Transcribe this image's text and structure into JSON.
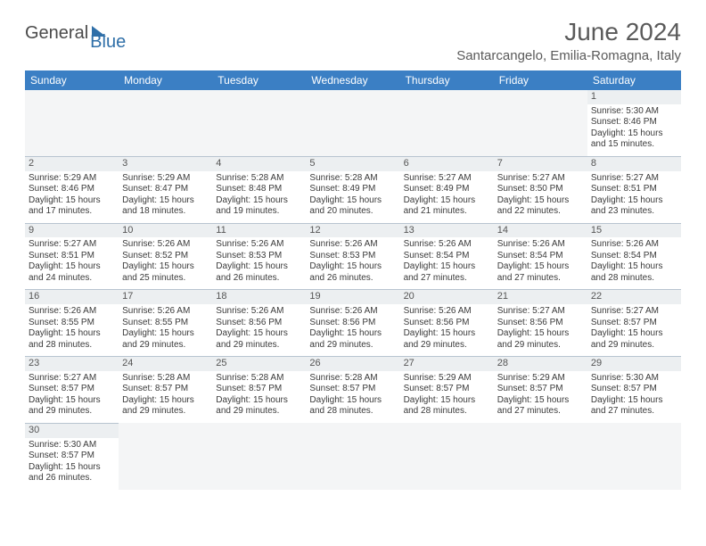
{
  "logo": {
    "part1": "General",
    "part2": "Blue"
  },
  "title": "June 2024",
  "location": "Santarcangelo, Emilia-Romagna, Italy",
  "colors": {
    "header_bg": "#3b7fc4",
    "header_text": "#ffffff",
    "daynum_bg": "#eceff1",
    "border": "#b8c4d0",
    "text": "#3a3a3a"
  },
  "weekdays": [
    "Sunday",
    "Monday",
    "Tuesday",
    "Wednesday",
    "Thursday",
    "Friday",
    "Saturday"
  ],
  "weeks": [
    [
      null,
      null,
      null,
      null,
      null,
      null,
      {
        "n": "1",
        "sr": "Sunrise: 5:30 AM",
        "ss": "Sunset: 8:46 PM",
        "dl": "Daylight: 15 hours and 15 minutes."
      }
    ],
    [
      {
        "n": "2",
        "sr": "Sunrise: 5:29 AM",
        "ss": "Sunset: 8:46 PM",
        "dl": "Daylight: 15 hours and 17 minutes."
      },
      {
        "n": "3",
        "sr": "Sunrise: 5:29 AM",
        "ss": "Sunset: 8:47 PM",
        "dl": "Daylight: 15 hours and 18 minutes."
      },
      {
        "n": "4",
        "sr": "Sunrise: 5:28 AM",
        "ss": "Sunset: 8:48 PM",
        "dl": "Daylight: 15 hours and 19 minutes."
      },
      {
        "n": "5",
        "sr": "Sunrise: 5:28 AM",
        "ss": "Sunset: 8:49 PM",
        "dl": "Daylight: 15 hours and 20 minutes."
      },
      {
        "n": "6",
        "sr": "Sunrise: 5:27 AM",
        "ss": "Sunset: 8:49 PM",
        "dl": "Daylight: 15 hours and 21 minutes."
      },
      {
        "n": "7",
        "sr": "Sunrise: 5:27 AM",
        "ss": "Sunset: 8:50 PM",
        "dl": "Daylight: 15 hours and 22 minutes."
      },
      {
        "n": "8",
        "sr": "Sunrise: 5:27 AM",
        "ss": "Sunset: 8:51 PM",
        "dl": "Daylight: 15 hours and 23 minutes."
      }
    ],
    [
      {
        "n": "9",
        "sr": "Sunrise: 5:27 AM",
        "ss": "Sunset: 8:51 PM",
        "dl": "Daylight: 15 hours and 24 minutes."
      },
      {
        "n": "10",
        "sr": "Sunrise: 5:26 AM",
        "ss": "Sunset: 8:52 PM",
        "dl": "Daylight: 15 hours and 25 minutes."
      },
      {
        "n": "11",
        "sr": "Sunrise: 5:26 AM",
        "ss": "Sunset: 8:53 PM",
        "dl": "Daylight: 15 hours and 26 minutes."
      },
      {
        "n": "12",
        "sr": "Sunrise: 5:26 AM",
        "ss": "Sunset: 8:53 PM",
        "dl": "Daylight: 15 hours and 26 minutes."
      },
      {
        "n": "13",
        "sr": "Sunrise: 5:26 AM",
        "ss": "Sunset: 8:54 PM",
        "dl": "Daylight: 15 hours and 27 minutes."
      },
      {
        "n": "14",
        "sr": "Sunrise: 5:26 AM",
        "ss": "Sunset: 8:54 PM",
        "dl": "Daylight: 15 hours and 27 minutes."
      },
      {
        "n": "15",
        "sr": "Sunrise: 5:26 AM",
        "ss": "Sunset: 8:54 PM",
        "dl": "Daylight: 15 hours and 28 minutes."
      }
    ],
    [
      {
        "n": "16",
        "sr": "Sunrise: 5:26 AM",
        "ss": "Sunset: 8:55 PM",
        "dl": "Daylight: 15 hours and 28 minutes."
      },
      {
        "n": "17",
        "sr": "Sunrise: 5:26 AM",
        "ss": "Sunset: 8:55 PM",
        "dl": "Daylight: 15 hours and 29 minutes."
      },
      {
        "n": "18",
        "sr": "Sunrise: 5:26 AM",
        "ss": "Sunset: 8:56 PM",
        "dl": "Daylight: 15 hours and 29 minutes."
      },
      {
        "n": "19",
        "sr": "Sunrise: 5:26 AM",
        "ss": "Sunset: 8:56 PM",
        "dl": "Daylight: 15 hours and 29 minutes."
      },
      {
        "n": "20",
        "sr": "Sunrise: 5:26 AM",
        "ss": "Sunset: 8:56 PM",
        "dl": "Daylight: 15 hours and 29 minutes."
      },
      {
        "n": "21",
        "sr": "Sunrise: 5:27 AM",
        "ss": "Sunset: 8:56 PM",
        "dl": "Daylight: 15 hours and 29 minutes."
      },
      {
        "n": "22",
        "sr": "Sunrise: 5:27 AM",
        "ss": "Sunset: 8:57 PM",
        "dl": "Daylight: 15 hours and 29 minutes."
      }
    ],
    [
      {
        "n": "23",
        "sr": "Sunrise: 5:27 AM",
        "ss": "Sunset: 8:57 PM",
        "dl": "Daylight: 15 hours and 29 minutes."
      },
      {
        "n": "24",
        "sr": "Sunrise: 5:28 AM",
        "ss": "Sunset: 8:57 PM",
        "dl": "Daylight: 15 hours and 29 minutes."
      },
      {
        "n": "25",
        "sr": "Sunrise: 5:28 AM",
        "ss": "Sunset: 8:57 PM",
        "dl": "Daylight: 15 hours and 29 minutes."
      },
      {
        "n": "26",
        "sr": "Sunrise: 5:28 AM",
        "ss": "Sunset: 8:57 PM",
        "dl": "Daylight: 15 hours and 28 minutes."
      },
      {
        "n": "27",
        "sr": "Sunrise: 5:29 AM",
        "ss": "Sunset: 8:57 PM",
        "dl": "Daylight: 15 hours and 28 minutes."
      },
      {
        "n": "28",
        "sr": "Sunrise: 5:29 AM",
        "ss": "Sunset: 8:57 PM",
        "dl": "Daylight: 15 hours and 27 minutes."
      },
      {
        "n": "29",
        "sr": "Sunrise: 5:30 AM",
        "ss": "Sunset: 8:57 PM",
        "dl": "Daylight: 15 hours and 27 minutes."
      }
    ],
    [
      {
        "n": "30",
        "sr": "Sunrise: 5:30 AM",
        "ss": "Sunset: 8:57 PM",
        "dl": "Daylight: 15 hours and 26 minutes."
      },
      null,
      null,
      null,
      null,
      null,
      null
    ]
  ]
}
